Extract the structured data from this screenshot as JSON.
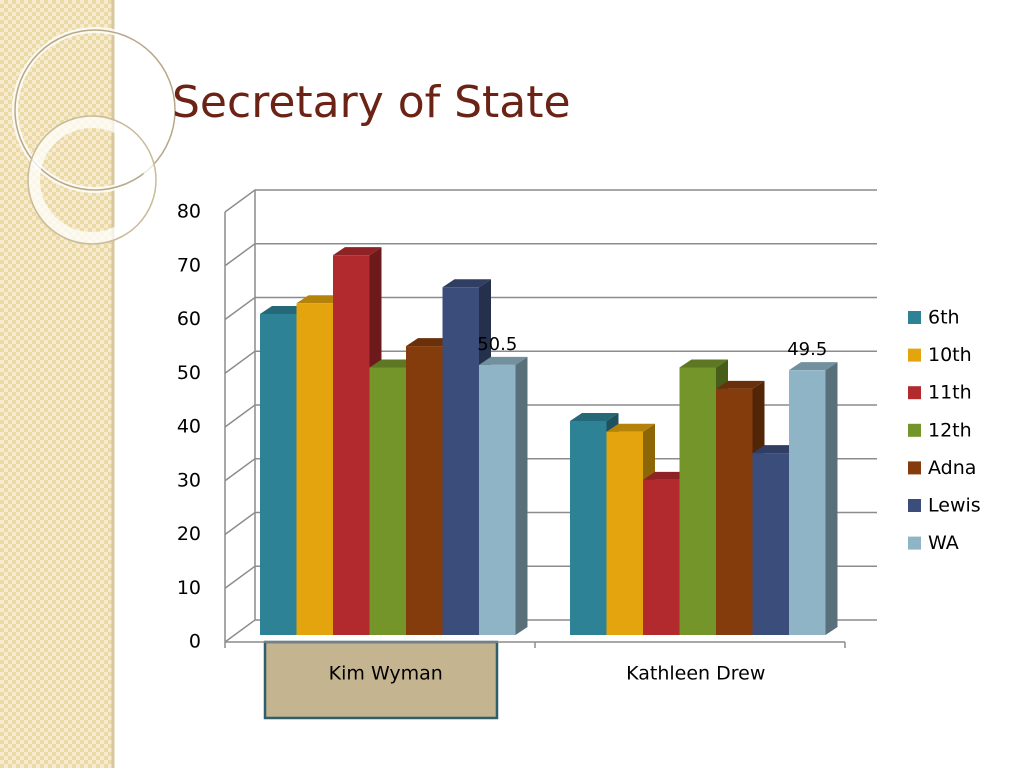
{
  "chart_data": {
    "type": "bar3d",
    "title": "Secretary of State",
    "categories": [
      "Kim Wyman",
      "Kathleen Drew"
    ],
    "series": [
      {
        "name": "6th",
        "color": "#2e8296",
        "values": [
          60,
          40
        ]
      },
      {
        "name": "10th",
        "color": "#e3a40d",
        "values": [
          62,
          38
        ]
      },
      {
        "name": "11th",
        "color": "#b22a2d",
        "values": [
          71,
          29
        ]
      },
      {
        "name": "12th",
        "color": "#74952a",
        "values": [
          50,
          50
        ]
      },
      {
        "name": "Adna",
        "color": "#843c0c",
        "values": [
          54,
          46
        ]
      },
      {
        "name": "Lewis",
        "color": "#3b4d7b",
        "values": [
          65,
          34
        ]
      },
      {
        "name": "WA",
        "color": "#8fb4c6",
        "values": [
          50.5,
          49.5
        ],
        "show_labels": true
      }
    ],
    "ylim": [
      0,
      80
    ],
    "yticks": [
      0,
      10,
      20,
      30,
      40,
      50,
      60,
      70,
      80
    ],
    "grid": true,
    "legend": "right"
  }
}
